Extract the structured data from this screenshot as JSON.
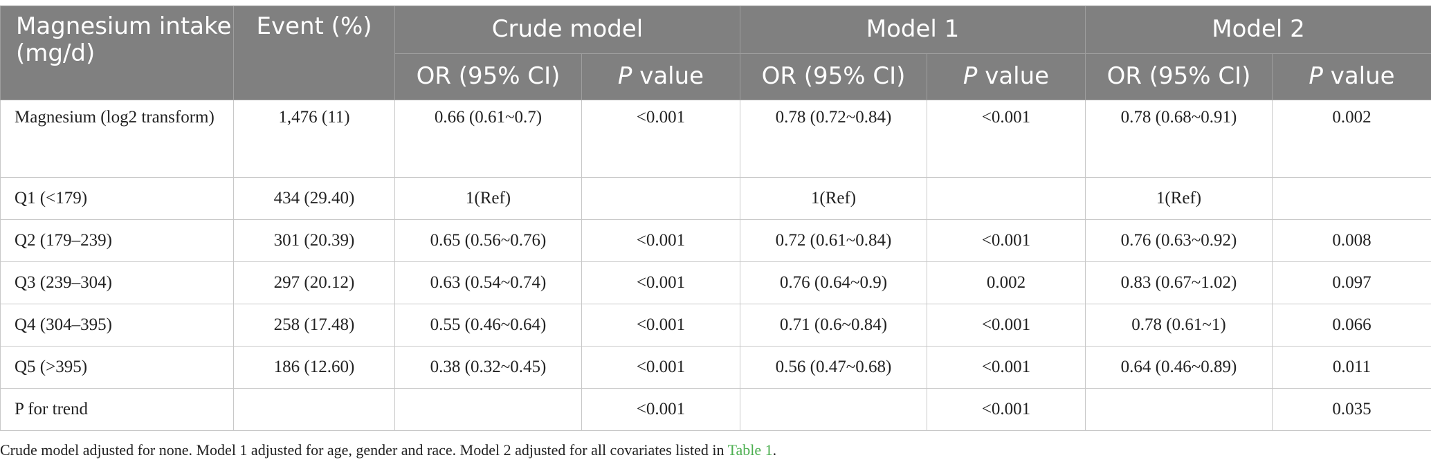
{
  "header": {
    "col1": "Magnesium intake (mg/d)",
    "col2": "Event (%)",
    "groups": [
      "Crude model",
      "Model 1",
      "Model 2"
    ],
    "or_label": "OR (95% CI)",
    "p_label_italic": "P",
    "p_label_rest": " value"
  },
  "rows": [
    {
      "label": "Magnesium (log2 transform)",
      "event": "1,476 (11)",
      "c_or": "0.66 (0.61~0.7)",
      "c_p": "<0.001",
      "m1_or": "0.78 (0.72~0.84)",
      "m1_p": "<0.001",
      "m2_or": "0.78 (0.68~0.91)",
      "m2_p": "0.002"
    },
    {
      "label": "Q1 (<179)",
      "event": "434 (29.40)",
      "c_or": "1(Ref)",
      "c_p": "",
      "m1_or": "1(Ref)",
      "m1_p": "",
      "m2_or": "1(Ref)",
      "m2_p": ""
    },
    {
      "label": "Q2 (179–239)",
      "event": "301 (20.39)",
      "c_or": "0.65 (0.56~0.76)",
      "c_p": "<0.001",
      "m1_or": "0.72 (0.61~0.84)",
      "m1_p": "<0.001",
      "m2_or": "0.76 (0.63~0.92)",
      "m2_p": "0.008"
    },
    {
      "label": "Q3 (239–304)",
      "event": "297 (20.12)",
      "c_or": "0.63 (0.54~0.74)",
      "c_p": "<0.001",
      "m1_or": "0.76 (0.64~0.9)",
      "m1_p": "0.002",
      "m2_or": "0.83 (0.67~1.02)",
      "m2_p": "0.097"
    },
    {
      "label": "Q4 (304–395)",
      "event": "258 (17.48)",
      "c_or": "0.55 (0.46~0.64)",
      "c_p": "<0.001",
      "m1_or": "0.71 (0.6~0.84)",
      "m1_p": "<0.001",
      "m2_or": "0.78 (0.61~1)",
      "m2_p": "0.066"
    },
    {
      "label": "Q5 (>395)",
      "event": "186 (12.60)",
      "c_or": "0.38 (0.32~0.45)",
      "c_p": "<0.001",
      "m1_or": "0.56 (0.47~0.68)",
      "m1_p": "<0.001",
      "m2_or": "0.64 (0.46~0.89)",
      "m2_p": "0.011"
    },
    {
      "label": "P for trend",
      "event": "",
      "c_or": "",
      "c_p": "<0.001",
      "m1_or": "",
      "m1_p": "<0.001",
      "m2_or": "",
      "m2_p": "0.035"
    }
  ],
  "footnote": {
    "text": "Crude model adjusted for none. Model 1 adjusted for age, gender and race. Model 2 adjusted for all covariates listed in ",
    "link": "Table 1",
    "end": "."
  }
}
